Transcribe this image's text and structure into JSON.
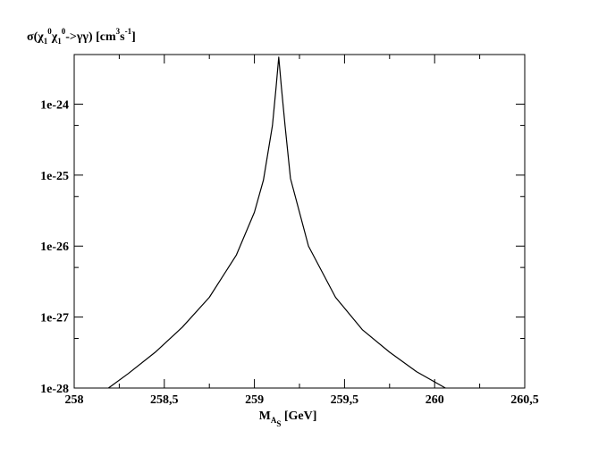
{
  "chart_data": {
    "type": "line",
    "title": "",
    "ylabel": {
      "text_parts": [
        {
          "t": "σ(χ",
          "style": "normal"
        },
        {
          "t": "1",
          "style": "sub"
        },
        {
          "t": "0",
          "style": "sup"
        },
        {
          "t": "χ",
          "style": "normal"
        },
        {
          "t": "1",
          "style": "sub"
        },
        {
          "t": "0",
          "style": "sup"
        },
        {
          "t": "->γγ)  [cm",
          "style": "normal"
        },
        {
          "t": "3",
          "style": "sup"
        },
        {
          "t": "s",
          "style": "normal"
        },
        {
          "t": "-1",
          "style": "sup"
        },
        {
          "t": "]",
          "style": "normal"
        }
      ]
    },
    "xlabel": {
      "text_parts": [
        {
          "t": "M",
          "style": "normal"
        },
        {
          "t": "A",
          "style": "sub"
        },
        {
          "t": "S",
          "style": "subsub"
        },
        {
          "t": " [GeV]",
          "style": "normal"
        }
      ]
    },
    "xlim": [
      258,
      260.5
    ],
    "ylim": [
      1e-28,
      5e-24
    ],
    "yscale": "log",
    "grid": false,
    "x_ticks": [
      258,
      258.5,
      259,
      259.5,
      260,
      260.5
    ],
    "x_tick_labels": [
      "258",
      "258,5",
      "259",
      "259,5",
      "260",
      "260,5"
    ],
    "y_ticks": [
      1e-28,
      1e-27,
      1e-26,
      1e-25,
      1e-24
    ],
    "y_tick_labels": [
      "1e-28",
      "1e-27",
      "1e-26",
      "1e-25",
      "1e-24"
    ],
    "series": [
      {
        "color": "#000000",
        "x": [
          258.19,
          258.3,
          258.45,
          258.6,
          258.75,
          258.9,
          259.0,
          259.05,
          259.1,
          259.12,
          259.135,
          259.15,
          259.17,
          259.2,
          259.3,
          259.45,
          259.6,
          259.75,
          259.9,
          260.06
        ],
        "y": [
          1e-28,
          1.6e-28,
          3.2e-28,
          7.2e-28,
          1.9e-27,
          7.5e-27,
          3e-26,
          8.5e-26,
          5e-25,
          1.7e-24,
          4.6e-24,
          1.7e-24,
          5e-25,
          9e-26,
          1e-26,
          1.9e-27,
          6.6e-28,
          3.2e-28,
          1.7e-28,
          1e-28
        ]
      }
    ]
  }
}
